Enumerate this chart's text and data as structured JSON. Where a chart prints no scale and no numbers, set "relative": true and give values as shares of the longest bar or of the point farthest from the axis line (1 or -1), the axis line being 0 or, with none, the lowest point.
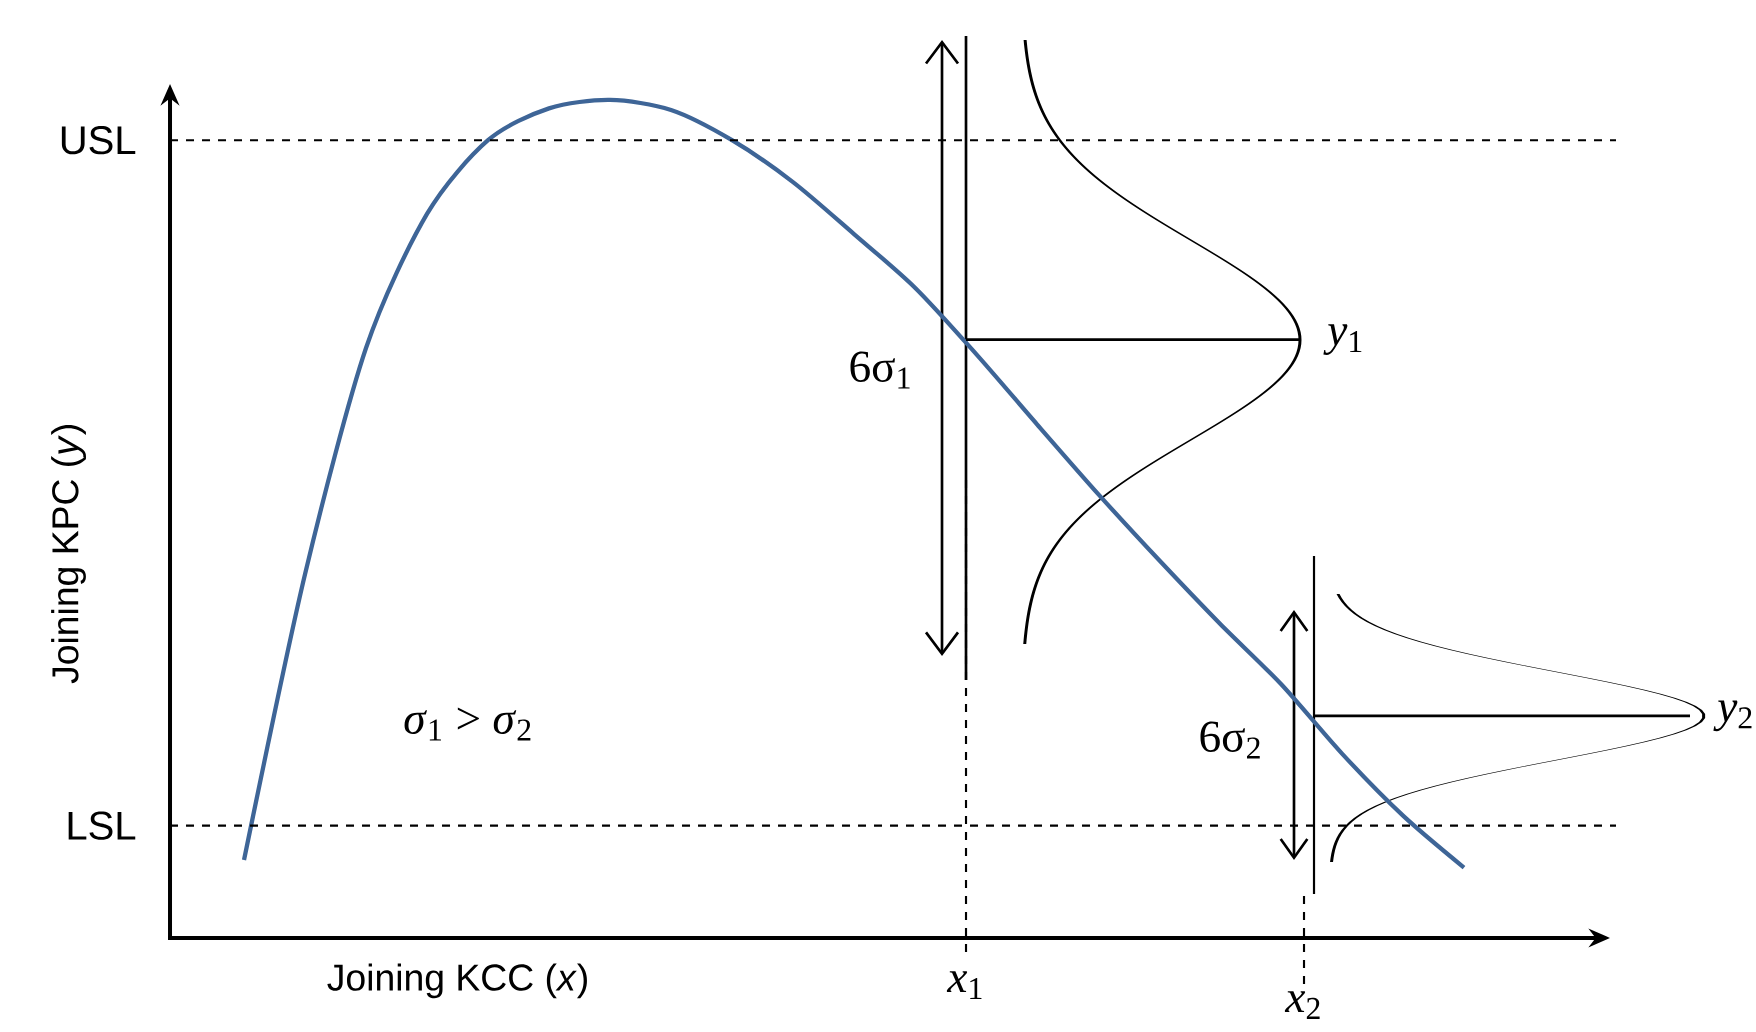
{
  "chart_data": {
    "type": "line",
    "relative": true,
    "xlabel": "Joining KCC (*x*)",
    "ylabel": "Joining KPC (*y*)",
    "categories": [
      null,
      null,
      null,
      null,
      null,
      null,
      null,
      null,
      null,
      null,
      null,
      null,
      null,
      null,
      null,
      null,
      null,
      null,
      null,
      null,
      null
    ],
    "series": [
      {
        "color": "#3e6597",
        "values": [
          0.093,
          0.434,
          0.704,
          0.864,
          0.952,
          0.99,
          1,
          0.988,
          0.952,
          0.902,
          0.84,
          0.776,
          0.697,
          0.613,
          0.53,
          0.451,
          0.375,
          0.303,
          0.22,
          0.146,
          0.084
        ]
      }
    ],
    "ref_lines": [
      {
        "axis": "y",
        "value": 0.952,
        "label": "USL",
        "line_style": "dashed"
      },
      {
        "axis": "y",
        "value": 0.134,
        "label": "LSL",
        "line_style": "dashed"
      },
      {
        "axis": "y",
        "value": 0.714,
        "label": "*y*$_{1}$",
        "line_style": "solid"
      },
      {
        "axis": "y",
        "value": 0.265,
        "label": "*y*$_{2}$",
        "line_style": "solid"
      }
    ],
    "annotations": [
      "6σ$_{1}$",
      "6σ$_{2}$",
      "*σ*$_{1}$ > *σ*$_{2}$",
      "*x*$_{1}$",
      "*x*$_{2}$"
    ]
  }
}
